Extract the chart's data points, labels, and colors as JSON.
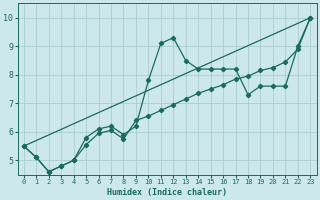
{
  "xlabel": "Humidex (Indice chaleur)",
  "background_color": "#cce8ec",
  "grid_color": "#aaccd4",
  "line_color": "#1a6b5e",
  "xlim": [
    -0.5,
    23.5
  ],
  "ylim": [
    4.5,
    10.5
  ],
  "xticks": [
    0,
    1,
    2,
    3,
    4,
    5,
    6,
    7,
    8,
    9,
    10,
    11,
    12,
    13,
    14,
    15,
    16,
    17,
    18,
    19,
    20,
    21,
    22,
    23
  ],
  "yticks": [
    5,
    6,
    7,
    8,
    9,
    10
  ],
  "series1_x": [
    0,
    1,
    2,
    3,
    4,
    5,
    6,
    7,
    8,
    9,
    10,
    11,
    12,
    13,
    14,
    15,
    16,
    17,
    18,
    19,
    20,
    21,
    22,
    23
  ],
  "series1_y": [
    5.5,
    5.1,
    4.6,
    4.8,
    5.0,
    5.8,
    6.1,
    6.2,
    5.9,
    6.2,
    7.8,
    9.1,
    9.3,
    8.5,
    8.2,
    8.2,
    8.2,
    8.2,
    7.3,
    7.6,
    7.6,
    7.6,
    9.0,
    10.0
  ],
  "series2_x": [
    0,
    1,
    2,
    3,
    4,
    5,
    6,
    7,
    8,
    9,
    10,
    11,
    12,
    13,
    14,
    15,
    16,
    17,
    18,
    19,
    20,
    21,
    22,
    23
  ],
  "series2_y": [
    5.5,
    5.1,
    4.6,
    4.8,
    5.0,
    5.55,
    5.95,
    6.05,
    5.75,
    6.4,
    6.55,
    6.75,
    6.95,
    7.15,
    7.35,
    7.5,
    7.65,
    7.85,
    7.95,
    8.15,
    8.25,
    8.45,
    8.9,
    10.0
  ],
  "series3_x": [
    0,
    23
  ],
  "series3_y": [
    5.5,
    10.0
  ]
}
